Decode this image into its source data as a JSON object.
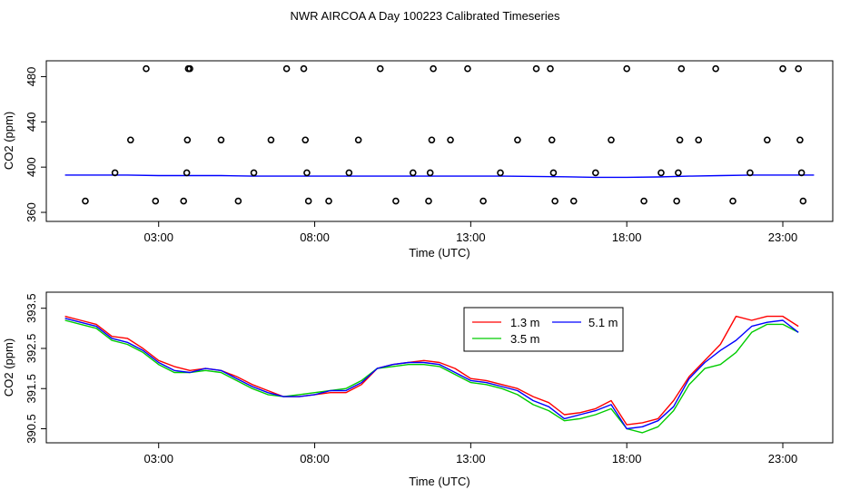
{
  "title": "NWR AIRCOA A  Day 100223  Calibrated Timeseries",
  "chart_data": [
    {
      "type": "scatter",
      "xlabel": "Time (UTC)",
      "ylabel": "CO2 (ppm)",
      "xlim": [
        -0.6,
        24.6
      ],
      "ylim": [
        352,
        494
      ],
      "xticks": [
        3,
        8,
        13,
        18,
        23
      ],
      "xtick_labels": [
        "03:00",
        "08:00",
        "13:00",
        "18:00",
        "23:00"
      ],
      "yticks": [
        360,
        400,
        440,
        480
      ],
      "grid": false,
      "series": [
        {
          "kind": "points",
          "x": [
            0.65,
            1.6,
            2.1,
            2.6,
            2.9,
            3.8,
            3.9,
            3.92,
            3.95,
            4.0,
            5.0,
            5.55,
            6.05,
            6.6,
            7.1,
            7.65,
            7.7,
            7.75,
            7.8,
            8.45,
            9.1,
            9.4,
            10.1,
            10.6,
            11.15,
            11.65,
            11.7,
            11.75,
            11.8,
            12.35,
            12.9,
            13.4,
            13.95,
            14.5,
            15.1,
            15.55,
            15.6,
            15.65,
            15.7,
            16.3,
            17.0,
            17.5,
            18.0,
            18.55,
            19.1,
            19.6,
            19.65,
            19.7,
            19.75,
            20.3,
            20.85,
            21.4,
            21.95,
            22.5,
            23.0,
            23.5,
            23.55,
            23.6,
            23.65
          ],
          "y": [
            370,
            395,
            424,
            487,
            370,
            370,
            395,
            424,
            487,
            487,
            424,
            370,
            395,
            424,
            487,
            487,
            424,
            395,
            370,
            370,
            395,
            424,
            487,
            370,
            395,
            370,
            395,
            424,
            487,
            424,
            487,
            370,
            395,
            424,
            487,
            487,
            424,
            395,
            370,
            370,
            395,
            424,
            487,
            370,
            395,
            370,
            395,
            424,
            487,
            424,
            487,
            370,
            395,
            424,
            487,
            487,
            424,
            395,
            370
          ],
          "color": "#000000"
        },
        {
          "kind": "line",
          "x": [
            0,
            1,
            2,
            3,
            4,
            5,
            6,
            7,
            8,
            9,
            10,
            11,
            12,
            13,
            14,
            15,
            16,
            17,
            18,
            19,
            20,
            21,
            22,
            23,
            24
          ],
          "y": [
            393,
            393,
            393,
            392.5,
            392.5,
            392.5,
            392,
            392,
            392,
            392,
            392,
            392,
            392,
            392,
            392,
            391.8,
            391.5,
            391,
            391,
            391.3,
            392,
            392.5,
            393,
            393,
            393
          ],
          "color": "#0000ff"
        }
      ]
    },
    {
      "type": "line",
      "xlabel": "Time (UTC)",
      "ylabel": "CO2 (ppm)",
      "xlim": [
        -0.6,
        24.6
      ],
      "ylim": [
        390.15,
        393.9
      ],
      "xticks": [
        3,
        8,
        13,
        18,
        23
      ],
      "xtick_labels": [
        "03:00",
        "08:00",
        "13:00",
        "18:00",
        "23:00"
      ],
      "yticks": [
        390.5,
        391.5,
        392.5,
        393.5
      ],
      "grid": false,
      "legend": "top-center",
      "series": [
        {
          "name": "1.3 m",
          "color": "#ff0000",
          "x": [
            0,
            0.5,
            1,
            1.5,
            2,
            2.5,
            3,
            3.5,
            4,
            4.5,
            5,
            5.5,
            6,
            6.5,
            7,
            7.5,
            8,
            8.5,
            9,
            9.5,
            10,
            10.5,
            11,
            11.5,
            12,
            12.5,
            13,
            13.5,
            14,
            14.5,
            15,
            15.5,
            16,
            16.5,
            17,
            17.5,
            18,
            18.5,
            19,
            19.5,
            20,
            20.5,
            21,
            21.5,
            22,
            22.5,
            23,
            23.5
          ],
          "y": [
            393.3,
            393.2,
            393.1,
            392.8,
            392.75,
            392.5,
            392.2,
            392.05,
            391.95,
            392.0,
            391.95,
            391.8,
            391.6,
            391.45,
            391.3,
            391.3,
            391.35,
            391.4,
            391.4,
            391.6,
            392.0,
            392.1,
            392.15,
            392.2,
            392.15,
            392.0,
            391.75,
            391.7,
            391.6,
            391.5,
            391.3,
            391.15,
            390.85,
            390.9,
            391.0,
            391.2,
            390.6,
            390.65,
            390.75,
            391.2,
            391.8,
            392.2,
            392.6,
            393.3,
            393.2,
            393.3,
            393.3,
            393.05
          ]
        },
        {
          "name": "3.5 m",
          "color": "#00cc00",
          "x": [
            0,
            0.5,
            1,
            1.5,
            2,
            2.5,
            3,
            3.5,
            4,
            4.5,
            5,
            5.5,
            6,
            6.5,
            7,
            7.5,
            8,
            8.5,
            9,
            9.5,
            10,
            10.5,
            11,
            11.5,
            12,
            12.5,
            13,
            13.5,
            14,
            14.5,
            15,
            15.5,
            16,
            16.5,
            17,
            17.5,
            18,
            18.5,
            19,
            19.5,
            20,
            20.5,
            21,
            21.5,
            22,
            22.5,
            23,
            23.5
          ],
          "y": [
            393.2,
            393.1,
            393.0,
            392.7,
            392.6,
            392.4,
            392.1,
            391.9,
            391.9,
            391.95,
            391.9,
            391.7,
            391.5,
            391.35,
            391.3,
            391.35,
            391.4,
            391.45,
            391.5,
            391.7,
            392.0,
            392.05,
            392.1,
            392.1,
            392.05,
            391.85,
            391.65,
            391.6,
            391.5,
            391.35,
            391.1,
            390.95,
            390.7,
            390.75,
            390.85,
            391.0,
            390.5,
            390.4,
            390.55,
            390.95,
            391.6,
            392.0,
            392.1,
            392.4,
            392.9,
            393.1,
            393.1,
            392.9
          ]
        },
        {
          "name": "5.1 m",
          "color": "#0000ff",
          "x": [
            0,
            0.5,
            1,
            1.5,
            2,
            2.5,
            3,
            3.5,
            4,
            4.5,
            5,
            5.5,
            6,
            6.5,
            7,
            7.5,
            8,
            8.5,
            9,
            9.5,
            10,
            10.5,
            11,
            11.5,
            12,
            12.5,
            13,
            13.5,
            14,
            14.5,
            15,
            15.5,
            16,
            16.5,
            17,
            17.5,
            18,
            18.5,
            19,
            19.5,
            20,
            20.5,
            21,
            21.5,
            22,
            22.5,
            23,
            23.5
          ],
          "y": [
            393.25,
            393.15,
            393.05,
            392.75,
            392.65,
            392.45,
            392.15,
            391.95,
            391.9,
            392.0,
            391.95,
            391.75,
            391.55,
            391.4,
            391.3,
            391.3,
            391.35,
            391.45,
            391.45,
            391.65,
            392.0,
            392.1,
            392.15,
            392.15,
            392.1,
            391.9,
            391.7,
            391.65,
            391.55,
            391.45,
            391.2,
            391.05,
            390.75,
            390.85,
            390.95,
            391.1,
            390.5,
            390.55,
            390.7,
            391.05,
            391.75,
            392.15,
            392.45,
            392.7,
            393.05,
            393.15,
            393.2,
            392.9
          ]
        }
      ]
    }
  ]
}
